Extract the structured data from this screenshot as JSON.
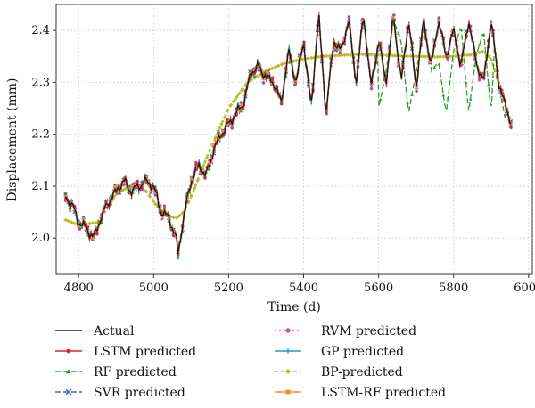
{
  "chart_data": {
    "type": "line",
    "title": "",
    "xlabel": "Time (d)",
    "ylabel": "Displacement (mm)",
    "xlim": [
      4740,
      6010
    ],
    "ylim": [
      1.93,
      2.45
    ],
    "xticks": [
      4800,
      5000,
      5200,
      5400,
      5600,
      5800,
      6000
    ],
    "yticks": [
      2.0,
      2.1,
      2.2,
      2.3,
      2.4
    ],
    "xtick_labels": [
      "4800",
      "5000",
      "5200",
      "5400",
      "5600",
      "5800",
      "6000"
    ],
    "ytick_labels": [
      "2.0",
      "2.1",
      "2.2",
      "2.3",
      "2.4"
    ],
    "grid": true,
    "legend_position": "below",
    "anchors": {
      "x": [
        4765,
        4785,
        4800,
        4820,
        4840,
        4860,
        4880,
        4900,
        4920,
        4940,
        4960,
        4980,
        5000,
        5020,
        5040,
        5060,
        5065,
        5080,
        5100,
        5120,
        5140,
        5160,
        5180,
        5200,
        5220,
        5240,
        5260,
        5280,
        5300,
        5320,
        5340,
        5360,
        5380,
        5400,
        5420,
        5440,
        5460,
        5480,
        5500,
        5520,
        5540,
        5560,
        5580,
        5600,
        5620,
        5640,
        5660,
        5680,
        5700,
        5720,
        5740,
        5760,
        5780,
        5800,
        5820,
        5840,
        5860,
        5880,
        5900,
        5920,
        5940,
        5955
      ],
      "y": [
        2.08,
        2.06,
        2.03,
        2.02,
        2.0,
        2.04,
        2.07,
        2.09,
        2.11,
        2.09,
        2.1,
        2.11,
        2.1,
        2.05,
        2.04,
        2.0,
        1.97,
        2.04,
        2.11,
        2.14,
        2.12,
        2.17,
        2.2,
        2.22,
        2.24,
        2.26,
        2.32,
        2.33,
        2.31,
        2.3,
        2.26,
        2.36,
        2.3,
        2.38,
        2.25,
        2.43,
        2.24,
        2.38,
        2.36,
        2.42,
        2.3,
        2.43,
        2.29,
        2.38,
        2.3,
        2.43,
        2.3,
        2.42,
        2.29,
        2.42,
        2.33,
        2.42,
        2.35,
        2.4,
        2.33,
        2.42,
        2.34,
        2.3,
        2.42,
        2.3,
        2.25,
        2.22
      ]
    },
    "bp_curve": {
      "x": [
        4765,
        4800,
        4850,
        4900,
        4950,
        4980,
        5000,
        5030,
        5060,
        5080,
        5100,
        5150,
        5200,
        5250,
        5300,
        5350,
        5400,
        5450,
        5500,
        5550,
        5600,
        5650,
        5700,
        5750,
        5800,
        5850,
        5880,
        5900,
        5920,
        5940,
        5955
      ],
      "y": [
        2.035,
        2.025,
        2.03,
        2.085,
        2.105,
        2.09,
        2.07,
        2.045,
        2.038,
        2.05,
        2.08,
        2.17,
        2.25,
        2.3,
        2.322,
        2.337,
        2.345,
        2.35,
        2.352,
        2.354,
        2.353,
        2.351,
        2.35,
        2.349,
        2.35,
        2.353,
        2.36,
        2.345,
        2.3,
        2.25,
        2.22
      ]
    },
    "rf_dips": [
      {
        "x": [
          5600,
          5620,
          5640,
          5660,
          5680,
          5700,
          5720
        ],
        "y": [
          2.25,
          2.32,
          2.42,
          2.38,
          2.24,
          2.32,
          2.4
        ]
      },
      {
        "x": [
          5740,
          5760,
          5780,
          5800,
          5820,
          5840,
          5860
        ],
        "y": [
          2.32,
          2.34,
          2.24,
          2.36,
          2.41,
          2.24,
          2.35
        ]
      },
      {
        "x": [
          5860,
          5880,
          5900,
          5910,
          5920,
          5940
        ],
        "y": [
          2.35,
          2.4,
          2.24,
          2.38,
          2.3,
          2.22
        ]
      }
    ],
    "series": [
      {
        "name": "Actual",
        "color": "#1a1a1a",
        "dash": "",
        "marker": "none",
        "jitter": 0.0
      },
      {
        "name": "LSTM predicted",
        "color": "#d62728",
        "dash": "",
        "marker": "circle",
        "jitter": 0.006
      },
      {
        "name": "RF predicted",
        "color": "#2ca02c",
        "dash": "6,3",
        "marker": "triangle",
        "jitter": 0.008
      },
      {
        "name": "SVR predicted",
        "color": "#4a5fc1",
        "dash": "6,3",
        "marker": "x",
        "jitter": 0.007
      },
      {
        "name": "RVM predicted",
        "color": "#c03bbf",
        "dash": "2,3",
        "marker": "star",
        "jitter": 0.009
      },
      {
        "name": "GP predicted",
        "color": "#17a2c9",
        "dash": "",
        "marker": "plus",
        "jitter": 0.005
      },
      {
        "name": "BP-predicted",
        "color": "#bcbd22",
        "dash": "4,3",
        "marker": "diamond",
        "jitter": 0.0
      },
      {
        "name": "LSTM-RF predicted",
        "color": "#ff8c1a",
        "dash": "",
        "marker": "square",
        "jitter": 0.004
      }
    ]
  }
}
